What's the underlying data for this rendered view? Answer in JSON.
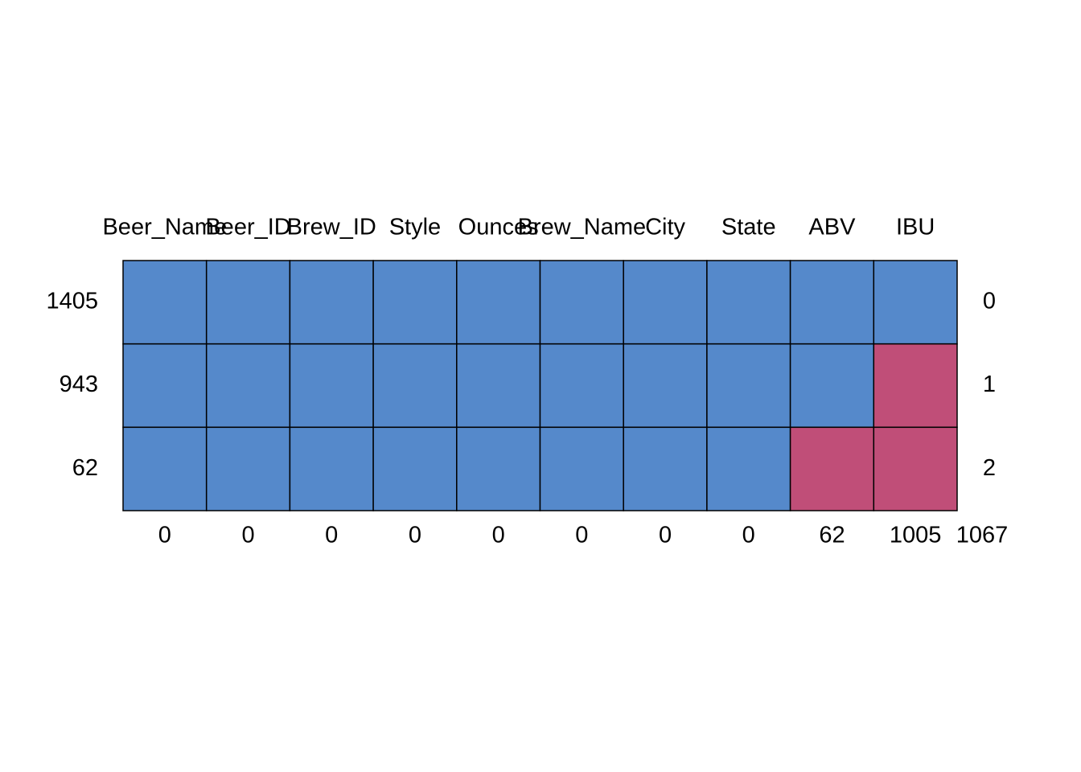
{
  "chart_data": {
    "type": "missing-pattern",
    "columns": [
      "Beer_Name",
      "Beer_ID",
      "Brew_ID",
      "Style",
      "Ounces",
      "Brew_Name",
      "City",
      "State",
      "ABV",
      "IBU"
    ],
    "rows": [
      {
        "count": 1405,
        "pattern": [
          1,
          1,
          1,
          1,
          1,
          1,
          1,
          1,
          1,
          1
        ],
        "missing": 0
      },
      {
        "count": 943,
        "pattern": [
          1,
          1,
          1,
          1,
          1,
          1,
          1,
          1,
          1,
          0
        ],
        "missing": 1
      },
      {
        "count": 62,
        "pattern": [
          1,
          1,
          1,
          1,
          1,
          1,
          1,
          1,
          0,
          0
        ],
        "missing": 2
      }
    ],
    "column_missing": [
      0,
      0,
      0,
      0,
      0,
      0,
      0,
      0,
      62,
      1005
    ],
    "total_missing": 1067,
    "colors": {
      "observed": "#5589cb",
      "missing": "#c04e78"
    }
  }
}
